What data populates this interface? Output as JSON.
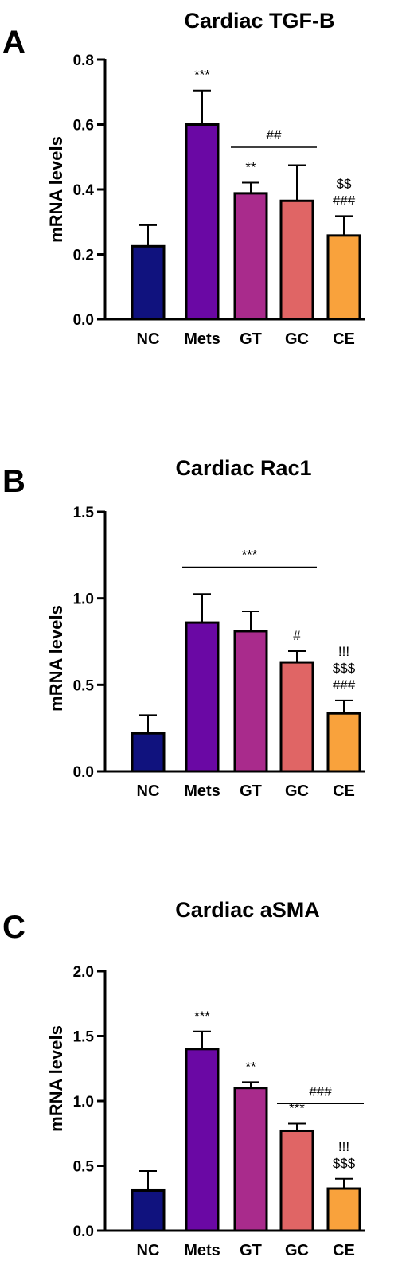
{
  "colors": {
    "NC": "#10127e",
    "Mets": "#6a08a4",
    "GT": "#a92b8c",
    "GC": "#e06565",
    "CE": "#f9a23c"
  },
  "chart_data": [
    {
      "type": "bar",
      "panel": "A",
      "title": "Cardiac TGF-B",
      "ylabel": "mRNA levels",
      "xlabel": "",
      "categories": [
        "NC",
        "Mets",
        "GT",
        "GC",
        "CE"
      ],
      "values": [
        0.225,
        0.6,
        0.388,
        0.365,
        0.258
      ],
      "errors": [
        0.065,
        0.105,
        0.033,
        0.11,
        0.06
      ],
      "ylim": [
        0,
        0.8
      ],
      "yticks": [
        {
          "value": 0.0,
          "label": "0.0"
        },
        {
          "value": 0.2,
          "label": "0.2"
        },
        {
          "value": 0.4,
          "label": "0.4"
        },
        {
          "value": 0.6,
          "label": "0.6"
        },
        {
          "value": 0.8,
          "label": "0.8"
        }
      ],
      "significance": [
        {
          "category": "Mets",
          "lines": [
            "***"
          ]
        },
        {
          "category": "GT",
          "lines": [
            "**"
          ]
        },
        {
          "category": "CE",
          "lines": [
            "$$",
            "###"
          ]
        }
      ],
      "brackets": [
        {
          "from": "GT",
          "to": "GC",
          "y": 0.53,
          "label": "##"
        }
      ]
    },
    {
      "type": "bar",
      "panel": "B",
      "title": "Cardiac Rac1",
      "ylabel": "mRNA levels",
      "xlabel": "",
      "categories": [
        "NC",
        "Mets",
        "GT",
        "GC",
        "CE"
      ],
      "values": [
        0.22,
        0.86,
        0.81,
        0.63,
        0.335
      ],
      "errors": [
        0.105,
        0.165,
        0.115,
        0.065,
        0.075
      ],
      "ylim": [
        0,
        1.5
      ],
      "yticks": [
        {
          "value": 0.0,
          "label": "0.0"
        },
        {
          "value": 0.5,
          "label": "0.5"
        },
        {
          "value": 1.0,
          "label": "1.0"
        },
        {
          "value": 1.5,
          "label": "1.5"
        }
      ],
      "significance": [
        {
          "category": "GC",
          "lines": [
            "#"
          ]
        },
        {
          "category": "CE",
          "lines": [
            "!!!",
            "$$$",
            "###"
          ]
        }
      ],
      "brackets": [
        {
          "from": "Mets",
          "to": "GC",
          "y": 1.18,
          "label": "***"
        }
      ]
    },
    {
      "type": "bar",
      "panel": "C",
      "title": "Cardiac aSMA",
      "ylabel": "mRNA levels",
      "xlabel": "",
      "categories": [
        "NC",
        "Mets",
        "GT",
        "GC",
        "CE"
      ],
      "values": [
        0.31,
        1.4,
        1.1,
        0.77,
        0.325
      ],
      "errors": [
        0.15,
        0.135,
        0.045,
        0.055,
        0.075
      ],
      "ylim": [
        0,
        2.0
      ],
      "yticks": [
        {
          "value": 0.0,
          "label": "0.0"
        },
        {
          "value": 0.5,
          "label": "0.5"
        },
        {
          "value": 1.0,
          "label": "1.0"
        },
        {
          "value": 1.5,
          "label": "1.5"
        },
        {
          "value": 2.0,
          "label": "2.0"
        }
      ],
      "significance": [
        {
          "category": "Mets",
          "lines": [
            "***"
          ]
        },
        {
          "category": "GT",
          "lines": [
            "**"
          ]
        },
        {
          "category": "GC",
          "lines": [
            "***"
          ]
        },
        {
          "category": "CE",
          "lines": [
            "!!!",
            "$$$"
          ]
        }
      ],
      "brackets": [
        {
          "from": "GC",
          "to": "CE",
          "y": 0.98,
          "label": "###"
        }
      ]
    }
  ]
}
